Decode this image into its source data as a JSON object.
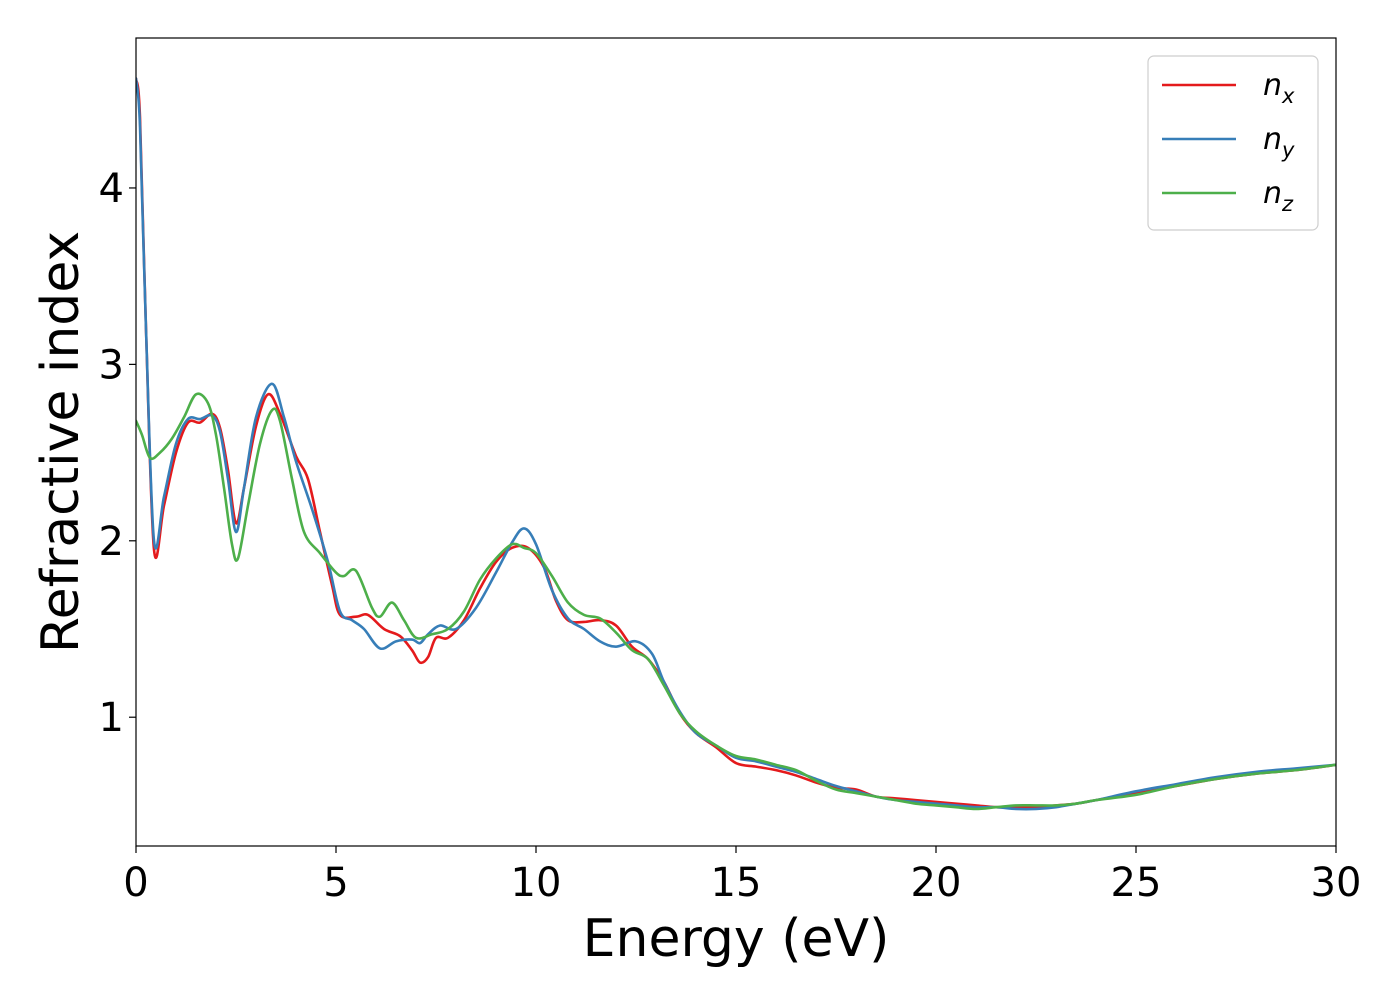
{
  "chart_data": {
    "type": "line",
    "xlabel": "Energy (eV)",
    "ylabel": "Refractive index",
    "xlim": [
      0,
      30
    ],
    "ylim": [
      0.27,
      4.85
    ],
    "xticks": [
      0,
      5,
      10,
      15,
      20,
      25,
      30
    ],
    "yticks": [
      1,
      2,
      3,
      4
    ],
    "legend_position": "top-right",
    "grid": false,
    "series": [
      {
        "name": "n_x",
        "label_base": "n",
        "label_sub": "x",
        "color": "#e41a1c",
        "points": [
          [
            0,
            4.62
          ],
          [
            0.1,
            4.4
          ],
          [
            0.25,
            3.2
          ],
          [
            0.45,
            1.95
          ],
          [
            0.7,
            2.2
          ],
          [
            1.0,
            2.5
          ],
          [
            1.3,
            2.67
          ],
          [
            1.6,
            2.67
          ],
          [
            1.9,
            2.72
          ],
          [
            2.1,
            2.64
          ],
          [
            2.3,
            2.4
          ],
          [
            2.5,
            2.1
          ],
          [
            2.7,
            2.3
          ],
          [
            3.0,
            2.65
          ],
          [
            3.3,
            2.83
          ],
          [
            3.6,
            2.72
          ],
          [
            4.0,
            2.48
          ],
          [
            4.3,
            2.35
          ],
          [
            4.6,
            2.05
          ],
          [
            4.9,
            1.75
          ],
          [
            5.1,
            1.58
          ],
          [
            5.5,
            1.57
          ],
          [
            5.8,
            1.58
          ],
          [
            6.2,
            1.5
          ],
          [
            6.6,
            1.46
          ],
          [
            6.9,
            1.38
          ],
          [
            7.1,
            1.31
          ],
          [
            7.3,
            1.34
          ],
          [
            7.5,
            1.45
          ],
          [
            7.8,
            1.45
          ],
          [
            8.2,
            1.55
          ],
          [
            8.6,
            1.73
          ],
          [
            9.0,
            1.88
          ],
          [
            9.4,
            1.96
          ],
          [
            9.8,
            1.96
          ],
          [
            10.2,
            1.85
          ],
          [
            10.5,
            1.66
          ],
          [
            10.8,
            1.55
          ],
          [
            11.2,
            1.54
          ],
          [
            11.6,
            1.55
          ],
          [
            12.0,
            1.52
          ],
          [
            12.4,
            1.4
          ],
          [
            12.8,
            1.33
          ],
          [
            13.2,
            1.2
          ],
          [
            13.6,
            1.02
          ],
          [
            14.0,
            0.91
          ],
          [
            14.5,
            0.83
          ],
          [
            15.0,
            0.74
          ],
          [
            15.5,
            0.72
          ],
          [
            16.0,
            0.7
          ],
          [
            16.5,
            0.67
          ],
          [
            17.0,
            0.63
          ],
          [
            17.5,
            0.6
          ],
          [
            18.0,
            0.59
          ],
          [
            18.5,
            0.55
          ],
          [
            19.0,
            0.54
          ],
          [
            19.5,
            0.53
          ],
          [
            20.0,
            0.52
          ],
          [
            20.5,
            0.51
          ],
          [
            21.0,
            0.5
          ],
          [
            21.5,
            0.49
          ],
          [
            22.0,
            0.49
          ],
          [
            22.5,
            0.49
          ],
          [
            23.0,
            0.5
          ],
          [
            23.5,
            0.51
          ],
          [
            24.0,
            0.53
          ],
          [
            25.0,
            0.57
          ],
          [
            26.0,
            0.61
          ],
          [
            27.0,
            0.65
          ],
          [
            28.0,
            0.68
          ],
          [
            29.0,
            0.7
          ],
          [
            30.0,
            0.73
          ]
        ]
      },
      {
        "name": "n_y",
        "label_base": "n",
        "label_sub": "y",
        "color": "#377eb8",
        "points": [
          [
            0,
            4.62
          ],
          [
            0.1,
            4.35
          ],
          [
            0.25,
            3.2
          ],
          [
            0.45,
            2.0
          ],
          [
            0.7,
            2.25
          ],
          [
            1.0,
            2.55
          ],
          [
            1.3,
            2.69
          ],
          [
            1.6,
            2.69
          ],
          [
            1.9,
            2.71
          ],
          [
            2.1,
            2.62
          ],
          [
            2.3,
            2.35
          ],
          [
            2.5,
            2.05
          ],
          [
            2.7,
            2.3
          ],
          [
            3.0,
            2.7
          ],
          [
            3.4,
            2.89
          ],
          [
            3.7,
            2.7
          ],
          [
            4.0,
            2.45
          ],
          [
            4.4,
            2.18
          ],
          [
            4.8,
            1.88
          ],
          [
            5.1,
            1.6
          ],
          [
            5.4,
            1.55
          ],
          [
            5.7,
            1.5
          ],
          [
            6.1,
            1.39
          ],
          [
            6.5,
            1.43
          ],
          [
            6.9,
            1.44
          ],
          [
            7.1,
            1.42
          ],
          [
            7.3,
            1.47
          ],
          [
            7.6,
            1.52
          ],
          [
            8.0,
            1.5
          ],
          [
            8.5,
            1.62
          ],
          [
            9.0,
            1.82
          ],
          [
            9.4,
            1.99
          ],
          [
            9.7,
            2.07
          ],
          [
            10.0,
            1.98
          ],
          [
            10.4,
            1.72
          ],
          [
            10.8,
            1.56
          ],
          [
            11.2,
            1.5
          ],
          [
            11.6,
            1.43
          ],
          [
            12.0,
            1.4
          ],
          [
            12.5,
            1.43
          ],
          [
            12.9,
            1.36
          ],
          [
            13.2,
            1.2
          ],
          [
            13.6,
            1.03
          ],
          [
            14.0,
            0.91
          ],
          [
            14.5,
            0.84
          ],
          [
            15.0,
            0.77
          ],
          [
            15.5,
            0.75
          ],
          [
            16.0,
            0.72
          ],
          [
            16.5,
            0.69
          ],
          [
            17.0,
            0.65
          ],
          [
            17.5,
            0.61
          ],
          [
            18.0,
            0.58
          ],
          [
            18.5,
            0.55
          ],
          [
            19.0,
            0.53
          ],
          [
            19.5,
            0.52
          ],
          [
            20.0,
            0.51
          ],
          [
            20.5,
            0.5
          ],
          [
            21.0,
            0.49
          ],
          [
            21.5,
            0.49
          ],
          [
            22.0,
            0.48
          ],
          [
            22.5,
            0.48
          ],
          [
            23.0,
            0.49
          ],
          [
            23.5,
            0.51
          ],
          [
            24.0,
            0.53
          ],
          [
            25.0,
            0.58
          ],
          [
            26.0,
            0.62
          ],
          [
            27.0,
            0.66
          ],
          [
            28.0,
            0.69
          ],
          [
            29.0,
            0.71
          ],
          [
            30.0,
            0.73
          ]
        ]
      },
      {
        "name": "n_z",
        "label_base": "n",
        "label_sub": "z",
        "color": "#4daf4a",
        "points": [
          [
            0,
            2.68
          ],
          [
            0.15,
            2.6
          ],
          [
            0.35,
            2.47
          ],
          [
            0.6,
            2.5
          ],
          [
            0.9,
            2.58
          ],
          [
            1.2,
            2.7
          ],
          [
            1.5,
            2.83
          ],
          [
            1.8,
            2.78
          ],
          [
            2.0,
            2.6
          ],
          [
            2.2,
            2.3
          ],
          [
            2.4,
            1.98
          ],
          [
            2.55,
            1.9
          ],
          [
            2.8,
            2.2
          ],
          [
            3.1,
            2.55
          ],
          [
            3.4,
            2.74
          ],
          [
            3.6,
            2.68
          ],
          [
            3.9,
            2.35
          ],
          [
            4.2,
            2.05
          ],
          [
            4.6,
            1.93
          ],
          [
            5.0,
            1.82
          ],
          [
            5.2,
            1.8
          ],
          [
            5.5,
            1.83
          ],
          [
            5.9,
            1.62
          ],
          [
            6.1,
            1.57
          ],
          [
            6.4,
            1.65
          ],
          [
            6.7,
            1.55
          ],
          [
            7.0,
            1.45
          ],
          [
            7.4,
            1.47
          ],
          [
            7.8,
            1.5
          ],
          [
            8.2,
            1.6
          ],
          [
            8.6,
            1.78
          ],
          [
            9.0,
            1.9
          ],
          [
            9.4,
            1.98
          ],
          [
            9.7,
            1.96
          ],
          [
            10.0,
            1.93
          ],
          [
            10.4,
            1.8
          ],
          [
            10.8,
            1.65
          ],
          [
            11.2,
            1.58
          ],
          [
            11.6,
            1.56
          ],
          [
            12.0,
            1.48
          ],
          [
            12.4,
            1.38
          ],
          [
            12.8,
            1.33
          ],
          [
            13.2,
            1.18
          ],
          [
            13.6,
            1.02
          ],
          [
            14.0,
            0.92
          ],
          [
            14.5,
            0.84
          ],
          [
            15.0,
            0.78
          ],
          [
            15.5,
            0.76
          ],
          [
            16.0,
            0.73
          ],
          [
            16.5,
            0.7
          ],
          [
            17.0,
            0.64
          ],
          [
            17.5,
            0.59
          ],
          [
            18.0,
            0.57
          ],
          [
            18.5,
            0.55
          ],
          [
            19.0,
            0.53
          ],
          [
            19.5,
            0.51
          ],
          [
            20.0,
            0.5
          ],
          [
            20.5,
            0.49
          ],
          [
            21.0,
            0.48
          ],
          [
            21.5,
            0.49
          ],
          [
            22.0,
            0.5
          ],
          [
            22.5,
            0.5
          ],
          [
            23.0,
            0.5
          ],
          [
            23.5,
            0.51
          ],
          [
            24.0,
            0.53
          ],
          [
            25.0,
            0.56
          ],
          [
            26.0,
            0.61
          ],
          [
            27.0,
            0.65
          ],
          [
            28.0,
            0.68
          ],
          [
            29.0,
            0.7
          ],
          [
            30.0,
            0.73
          ]
        ]
      }
    ]
  }
}
